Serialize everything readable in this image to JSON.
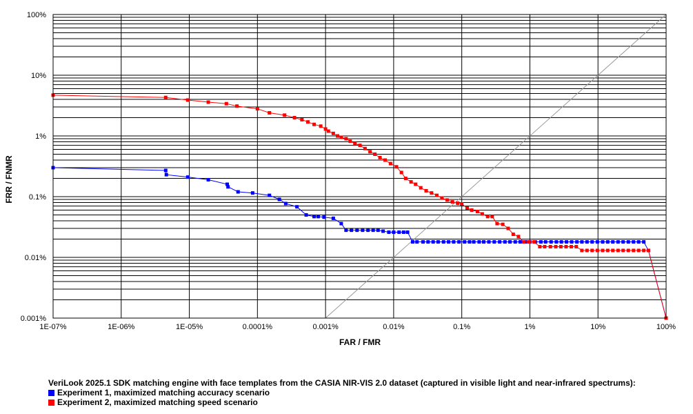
{
  "chart_data": {
    "type": "line",
    "title": "",
    "xlabel": "FAR / FMR",
    "ylabel": "FRR / FNMR",
    "x_scale": "log",
    "y_scale": "log",
    "xlim": [
      1e-07,
      100
    ],
    "ylim": [
      0.001,
      100
    ],
    "x_ticks": [
      {
        "value": 1e-07,
        "label": "1E-07%"
      },
      {
        "value": 1e-06,
        "label": "1E-06%"
      },
      {
        "value": 1e-05,
        "label": "1E-05%"
      },
      {
        "value": 0.0001,
        "label": "0.0001%"
      },
      {
        "value": 0.001,
        "label": "0.001%"
      },
      {
        "value": 0.01,
        "label": "0.01%"
      },
      {
        "value": 0.1,
        "label": "0.1%"
      },
      {
        "value": 1,
        "label": "1%"
      },
      {
        "value": 10,
        "label": "10%"
      },
      {
        "value": 100,
        "label": "100%"
      }
    ],
    "y_ticks": [
      {
        "value": 0.001,
        "label": "0.001%"
      },
      {
        "value": 0.01,
        "label": "0.01%"
      },
      {
        "value": 0.1,
        "label": "0.1%"
      },
      {
        "value": 1,
        "label": "1%"
      },
      {
        "value": 10,
        "label": "10%"
      },
      {
        "value": 100,
        "label": "100%"
      }
    ],
    "grid": true,
    "diagonal_reference": true,
    "legend_position": "bottom-left",
    "legend_title": "VeriLook 2025.1 SDK matching engine with face templates from the CASIA NIR-VIS 2.0 dataset (captured in visible light and near-infrared spectrums):",
    "series": [
      {
        "name": "Experiment 1, maximized matching accuracy scenario",
        "color": "#0000ff",
        "points": [
          [
            1e-07,
            0.3
          ],
          [
            4.5e-06,
            0.27
          ],
          [
            4.6e-06,
            0.23
          ],
          [
            9.5e-06,
            0.21
          ],
          [
            1.9e-05,
            0.19
          ],
          [
            3.6e-05,
            0.16
          ],
          [
            3.7e-05,
            0.145
          ],
          [
            5.2e-05,
            0.12
          ],
          [
            8.5e-05,
            0.115
          ],
          [
            0.00015,
            0.105
          ],
          [
            0.00021,
            0.09
          ],
          [
            0.00026,
            0.077
          ],
          [
            0.00038,
            0.068
          ],
          [
            0.00052,
            0.05
          ],
          [
            0.00068,
            0.047
          ],
          [
            0.00078,
            0.047
          ],
          [
            0.00095,
            0.046
          ],
          [
            0.0013,
            0.044
          ],
          [
            0.0017,
            0.036
          ],
          [
            0.002,
            0.028
          ],
          [
            0.0024,
            0.028
          ],
          [
            0.0029,
            0.028
          ],
          [
            0.0035,
            0.028
          ],
          [
            0.0042,
            0.028
          ],
          [
            0.005,
            0.028
          ],
          [
            0.0059,
            0.028
          ],
          [
            0.007,
            0.027
          ],
          [
            0.0085,
            0.026
          ],
          [
            0.01,
            0.026
          ],
          [
            0.012,
            0.026
          ],
          [
            0.014,
            0.026
          ],
          [
            0.016,
            0.026
          ],
          [
            0.019,
            0.018
          ],
          [
            0.022,
            0.018
          ],
          [
            0.027,
            0.018
          ],
          [
            0.032,
            0.018
          ],
          [
            0.038,
            0.018
          ],
          [
            0.045,
            0.018
          ],
          [
            0.054,
            0.018
          ],
          [
            0.064,
            0.018
          ],
          [
            0.076,
            0.018
          ],
          [
            0.091,
            0.018
          ],
          [
            0.11,
            0.018
          ],
          [
            0.13,
            0.018
          ],
          [
            0.15,
            0.018
          ],
          [
            0.18,
            0.018
          ],
          [
            0.21,
            0.018
          ],
          [
            0.25,
            0.018
          ],
          [
            0.3,
            0.018
          ],
          [
            0.36,
            0.018
          ],
          [
            0.43,
            0.018
          ],
          [
            0.51,
            0.018
          ],
          [
            0.61,
            0.018
          ],
          [
            0.72,
            0.018
          ],
          [
            0.86,
            0.018
          ],
          [
            1.0,
            0.018
          ],
          [
            1.2,
            0.018
          ],
          [
            1.45,
            0.018
          ],
          [
            1.7,
            0.018
          ],
          [
            2.05,
            0.018
          ],
          [
            2.45,
            0.018
          ],
          [
            2.9,
            0.018
          ],
          [
            3.45,
            0.018
          ],
          [
            4.1,
            0.018
          ],
          [
            4.9,
            0.018
          ],
          [
            5.8,
            0.018
          ],
          [
            6.9,
            0.018
          ],
          [
            8.2,
            0.018
          ],
          [
            9.8,
            0.018
          ],
          [
            11.7,
            0.018
          ],
          [
            13.9,
            0.018
          ],
          [
            16.5,
            0.018
          ],
          [
            19.7,
            0.018
          ],
          [
            23.4,
            0.018
          ],
          [
            27.9,
            0.018
          ],
          [
            33.2,
            0.018
          ],
          [
            39.5,
            0.018
          ],
          [
            47,
            0.018
          ],
          [
            55,
            0.013
          ],
          [
            100,
            0.001
          ]
        ]
      },
      {
        "name": "Experiment 2, maximized matching speed scenario",
        "color": "#ff0000",
        "points": [
          [
            1e-07,
            4.7
          ],
          [
            4.5e-06,
            4.3
          ],
          [
            9.5e-06,
            3.9
          ],
          [
            1.9e-05,
            3.6
          ],
          [
            3.5e-05,
            3.4
          ],
          [
            5e-05,
            3.1
          ],
          [
            0.0001,
            2.8
          ],
          [
            0.00015,
            2.4
          ],
          [
            0.00025,
            2.2
          ],
          [
            0.00035,
            2.0
          ],
          [
            0.00045,
            1.85
          ],
          [
            0.00055,
            1.7
          ],
          [
            0.00068,
            1.55
          ],
          [
            0.00085,
            1.45
          ],
          [
            0.001,
            1.3
          ],
          [
            0.0011,
            1.2
          ],
          [
            0.0013,
            1.1
          ],
          [
            0.0015,
            1.0
          ],
          [
            0.0017,
            0.95
          ],
          [
            0.002,
            0.9
          ],
          [
            0.0023,
            0.82
          ],
          [
            0.0027,
            0.75
          ],
          [
            0.0032,
            0.7
          ],
          [
            0.0038,
            0.62
          ],
          [
            0.0045,
            0.55
          ],
          [
            0.0053,
            0.5
          ],
          [
            0.0063,
            0.44
          ],
          [
            0.0075,
            0.4
          ],
          [
            0.009,
            0.35
          ],
          [
            0.011,
            0.31
          ],
          [
            0.013,
            0.25
          ],
          [
            0.015,
            0.2
          ],
          [
            0.018,
            0.175
          ],
          [
            0.021,
            0.16
          ],
          [
            0.025,
            0.14
          ],
          [
            0.03,
            0.125
          ],
          [
            0.036,
            0.115
          ],
          [
            0.043,
            0.105
          ],
          [
            0.051,
            0.095
          ],
          [
            0.061,
            0.088
          ],
          [
            0.073,
            0.082
          ],
          [
            0.087,
            0.078
          ],
          [
            0.1,
            0.076
          ],
          [
            0.12,
            0.065
          ],
          [
            0.14,
            0.06
          ],
          [
            0.17,
            0.057
          ],
          [
            0.2,
            0.052
          ],
          [
            0.24,
            0.047
          ],
          [
            0.28,
            0.047
          ],
          [
            0.33,
            0.036
          ],
          [
            0.4,
            0.035
          ],
          [
            0.48,
            0.03
          ],
          [
            0.57,
            0.024
          ],
          [
            0.68,
            0.022
          ],
          [
            0.81,
            0.018
          ],
          [
            0.97,
            0.018
          ],
          [
            1.15,
            0.018
          ],
          [
            1.4,
            0.015
          ],
          [
            1.65,
            0.015
          ],
          [
            2.0,
            0.015
          ],
          [
            2.4,
            0.015
          ],
          [
            2.85,
            0.015
          ],
          [
            3.4,
            0.015
          ],
          [
            4.05,
            0.015
          ],
          [
            4.8,
            0.015
          ],
          [
            5.8,
            0.013
          ],
          [
            6.9,
            0.013
          ],
          [
            8.2,
            0.013
          ],
          [
            9.8,
            0.013
          ],
          [
            11.7,
            0.013
          ],
          [
            13.9,
            0.013
          ],
          [
            16.5,
            0.013
          ],
          [
            19.7,
            0.013
          ],
          [
            23.4,
            0.013
          ],
          [
            27.9,
            0.013
          ],
          [
            33.2,
            0.013
          ],
          [
            39.5,
            0.013
          ],
          [
            47,
            0.013
          ],
          [
            55,
            0.013
          ],
          [
            100,
            0.001
          ]
        ]
      }
    ]
  }
}
